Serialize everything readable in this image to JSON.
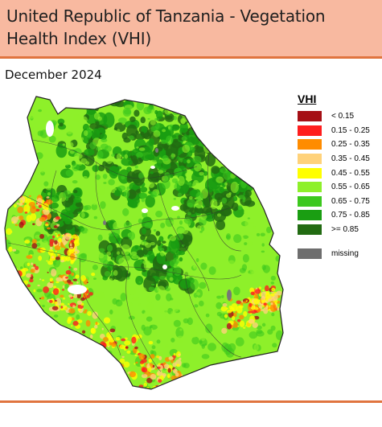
{
  "header": {
    "title_line1": "United Republic of Tanzania - Vegetation",
    "title_line2": "Health Index (VHI)"
  },
  "date": "December 2024",
  "legend": {
    "title": "VHI",
    "items": [
      {
        "label": "< 0.15",
        "color": "#a50f15"
      },
      {
        "label": "0.15 - 0.25",
        "color": "#ff1e1e"
      },
      {
        "label": "0.25 - 0.35",
        "color": "#ff8c00"
      },
      {
        "label": "0.35 - 0.45",
        "color": "#ffd27a"
      },
      {
        "label": "0.45 - 0.55",
        "color": "#ffff00"
      },
      {
        "label": "0.55 - 0.65",
        "color": "#8ef02a"
      },
      {
        "label": "0.65 - 0.75",
        "color": "#3cc81e"
      },
      {
        "label": "0.75 - 0.85",
        "color": "#1a9e12"
      },
      {
        "label": ">= 0.85",
        "color": "#226b12"
      }
    ],
    "missing": {
      "label": "missing",
      "color": "#6e6e6e"
    }
  },
  "colors": {
    "header_bg": "#f8b9a0",
    "rule": "#e0743f"
  }
}
